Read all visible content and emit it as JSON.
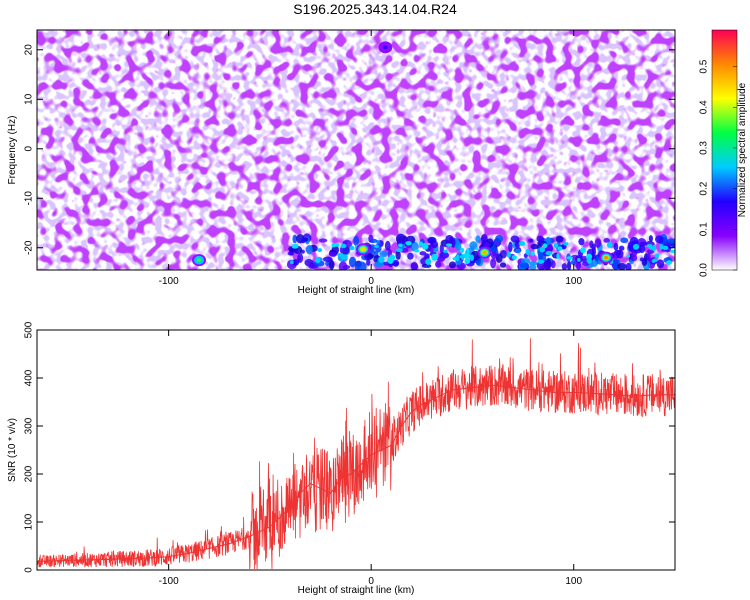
{
  "title": "S196.2025.343.14.04.R24",
  "chart_data": [
    {
      "type": "heatmap",
      "xlabel": "Height of straight line (km)",
      "ylabel": "Frequency (Hz)",
      "xlim": [
        -165,
        150
      ],
      "ylim": [
        -24.5,
        24
      ],
      "xticks": [
        -100,
        0,
        100
      ],
      "yticks": [
        -20,
        -10,
        0,
        10,
        20
      ],
      "colorbar": {
        "label": "Normalized spectral amplitude",
        "range": [
          0,
          0.59
        ],
        "ticks": [
          "0.0",
          "0.1",
          "0.2",
          "0.3",
          "0.4",
          "0.5"
        ],
        "colors": [
          "#ffffff",
          "#8800ff",
          "#2200ff",
          "#00ccff",
          "#00ff44",
          "#ffff00",
          "#ff8800",
          "#ff0055"
        ]
      },
      "hotspots": [
        {
          "x": -85,
          "y": -22.5,
          "value": 0.35
        },
        {
          "x": -4,
          "y": -20.3,
          "value": 0.45
        },
        {
          "x": 56,
          "y": -21,
          "value": 0.48
        },
        {
          "x": 116,
          "y": -22,
          "value": 0.5
        },
        {
          "x": 7,
          "y": 20.5,
          "value": 0.15
        }
      ]
    },
    {
      "type": "line",
      "xlabel": "Height of straight line (km)",
      "ylabel": "SNR (10 * v/v)",
      "xlim": [
        -165,
        150
      ],
      "ylim": [
        0,
        500
      ],
      "xticks": [
        -100,
        0,
        100
      ],
      "yticks": [
        0,
        100,
        200,
        300,
        400,
        500
      ],
      "color": "#ee3333",
      "x": [
        -165,
        -150,
        -130,
        -110,
        -100,
        -90,
        -80,
        -70,
        -60,
        -50,
        -45,
        -40,
        -35,
        -30,
        -25,
        -20,
        -15,
        -10,
        -5,
        0,
        5,
        10,
        15,
        20,
        25,
        30,
        40,
        50,
        60,
        70,
        80,
        90,
        100,
        110,
        120,
        130,
        140,
        150
      ],
      "y": [
        18,
        20,
        22,
        25,
        28,
        35,
        45,
        55,
        70,
        90,
        110,
        130,
        160,
        180,
        170,
        160,
        190,
        200,
        220,
        240,
        250,
        260,
        300,
        330,
        345,
        355,
        375,
        380,
        385,
        380,
        375,
        370,
        370,
        368,
        365,
        362,
        365,
        365
      ]
    }
  ]
}
